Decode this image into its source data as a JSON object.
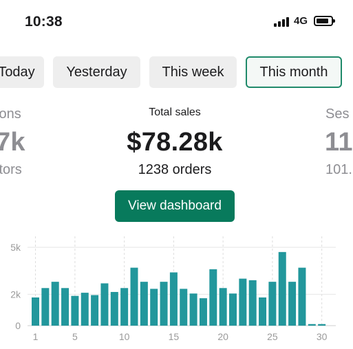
{
  "status_bar": {
    "time": "10:38",
    "network": "4G",
    "icons": [
      "signal-icon",
      "battery-icon"
    ]
  },
  "tabs": [
    {
      "label": "Today",
      "selected": false
    },
    {
      "label": "Yesterday",
      "selected": false
    },
    {
      "label": "This week",
      "selected": false
    },
    {
      "label": "This month",
      "selected": true
    }
  ],
  "metrics": {
    "left": {
      "label": "ions",
      "value": "7k",
      "sub": "itors"
    },
    "center": {
      "label": "Total sales",
      "value": "$78.28k",
      "sub": "1238 orders"
    },
    "right": {
      "label": "Ses",
      "value": "11",
      "sub": "101."
    }
  },
  "view_dashboard_label": "View dashboard",
  "colors": {
    "accent": "#087a5c",
    "bar": "#22979c",
    "selected_border": "#1f8a6a"
  },
  "chart_data": {
    "type": "bar",
    "title": "",
    "xlabel": "",
    "ylabel": "",
    "x": [
      1,
      2,
      3,
      4,
      5,
      6,
      7,
      8,
      9,
      10,
      11,
      12,
      13,
      14,
      15,
      16,
      17,
      18,
      19,
      20,
      21,
      22,
      23,
      24,
      25,
      26,
      27,
      28,
      29,
      30
    ],
    "values": [
      1800,
      2400,
      2800,
      2400,
      1900,
      2100,
      1950,
      2700,
      2150,
      2400,
      3700,
      2800,
      2350,
      2800,
      3400,
      2350,
      2050,
      1750,
      3600,
      2400,
      2050,
      3000,
      2900,
      1800,
      2800,
      4700,
      2800,
      3700,
      100,
      100
    ],
    "ylim": [
      0,
      5000
    ],
    "yticks": [
      0,
      2000,
      5000
    ],
    "ytick_labels": [
      "0",
      "2k",
      "5k"
    ],
    "xticks": [
      1,
      5,
      10,
      15,
      20,
      25,
      30
    ],
    "xtick_labels": [
      "1",
      "5",
      "10",
      "15",
      "20",
      "25",
      "30"
    ],
    "grid": true
  }
}
